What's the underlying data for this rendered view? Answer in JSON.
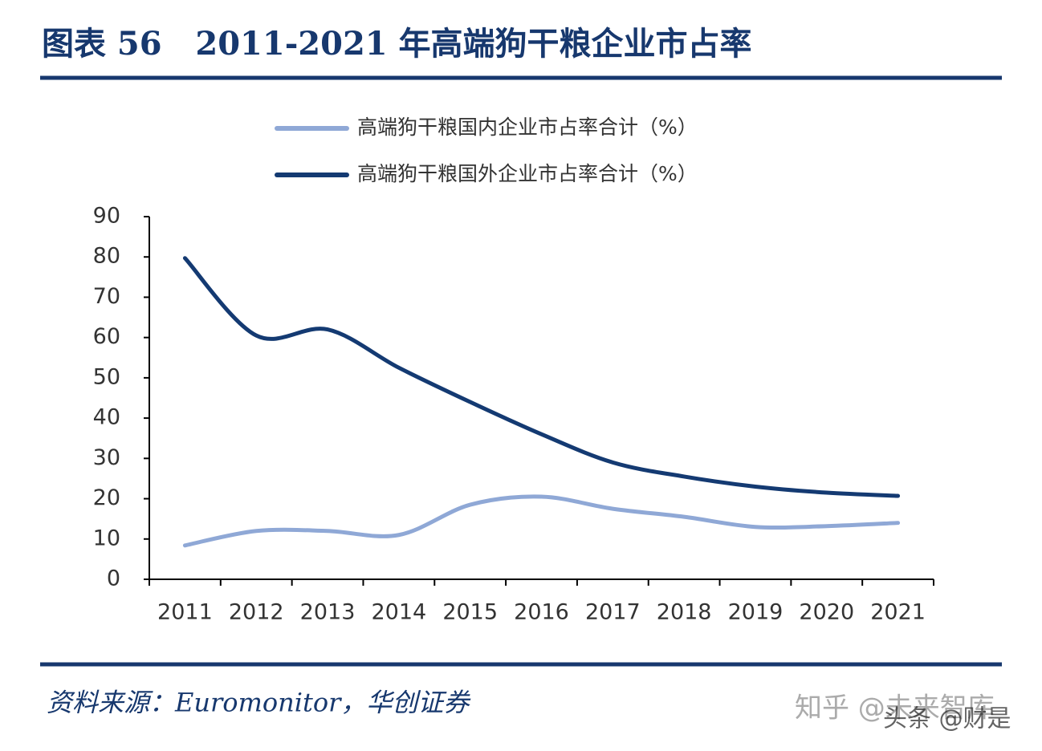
{
  "chart_data": {
    "type": "line",
    "title": "图表 56   2011-2021 年高端狗干粮企业市占率",
    "categories": [
      "2011",
      "2012",
      "2013",
      "2014",
      "2015",
      "2016",
      "2017",
      "2018",
      "2019",
      "2020",
      "2021"
    ],
    "series": [
      {
        "name": "高端狗干粮国内企业市占率合计（%）",
        "color": "#8fa8d6",
        "values": [
          8.4,
          12,
          12,
          11,
          18.5,
          20.5,
          17.5,
          15.5,
          13,
          13.2,
          14
        ]
      },
      {
        "name": "高端狗干粮国外企业市占率合计（%）",
        "color": "#143a72",
        "values": [
          79.7,
          60.5,
          62,
          52.5,
          44,
          36,
          29,
          25.5,
          23,
          21.5,
          20.7
        ]
      }
    ],
    "ylim": [
      0,
      90
    ],
    "yticks": [
      0,
      10,
      20,
      30,
      40,
      50,
      60,
      70,
      80,
      90
    ],
    "source": "资料来源：Euromonitor，华创证券",
    "watermarks": [
      "知乎 @未来智库",
      "头条 @财是"
    ]
  }
}
